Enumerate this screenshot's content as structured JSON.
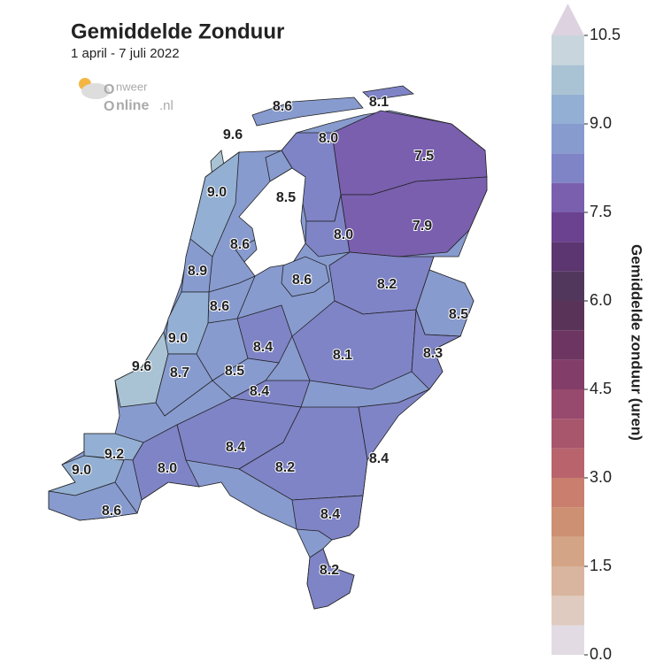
{
  "header": {
    "title": "Gemiddelde Zonduur",
    "subtitle": "1 april - 7 juli 2022"
  },
  "logo": {
    "top": "nweer",
    "bottom": "nline",
    "suffix": ".nl"
  },
  "map": {
    "values": [
      8.6,
      8.1,
      9.6,
      8.0,
      7.5,
      9.0,
      8.5,
      8.0,
      7.9,
      8.6,
      8.9,
      8.6,
      8.2,
      8.6,
      8.5,
      9.0,
      8.4,
      8.1,
      8.3,
      9.6,
      8.7,
      8.5,
      8.4,
      8.4,
      8.4,
      9.2,
      8.0,
      8.2,
      9.0,
      8.6,
      8.4,
      8.2
    ],
    "value_labels": [
      "8.6",
      "8.1",
      "9.6",
      "8.0",
      "7.5",
      "9.0",
      "8.5",
      "8.0",
      "7.9",
      "8.6",
      "8.9",
      "8.6",
      "8.2",
      "8.6",
      "8.5",
      "9.0",
      "8.4",
      "8.1",
      "8.3",
      "9.6",
      "8.7",
      "8.5",
      "8.4",
      "8.4",
      "8.4",
      "9.2",
      "8.0",
      "8.2",
      "9.0",
      "8.6",
      "8.4",
      "8.2"
    ]
  },
  "colorbar": {
    "label": "Gemiddelde zonduur (uren)",
    "lim": [
      0,
      10.5
    ],
    "step": 0.5,
    "colors": [
      "#e2dbe3",
      "#dfcbbf",
      "#d9b59f",
      "#d3a485",
      "#cd9072",
      "#c97e6e",
      "#b9646c",
      "#a8566c",
      "#974a6d",
      "#823d68",
      "#6d3561",
      "#5a3458",
      "#52375d",
      "#5b3670",
      "#6a4290",
      "#7a5fae",
      "#7f84c6",
      "#889bcf",
      "#93afd3",
      "#a9c3d4",
      "#c9d5dc"
    ],
    "over_color": "#ddd3e0",
    "ticks": [
      {
        "value": 0,
        "label": "0.0"
      },
      1.5,
      {
        "value": 3,
        "label": "3.0"
      },
      4.5,
      {
        "value": 6,
        "label": "6.0"
      },
      7.5,
      {
        "value": 9,
        "label": "9.0"
      },
      10.5
    ]
  }
}
